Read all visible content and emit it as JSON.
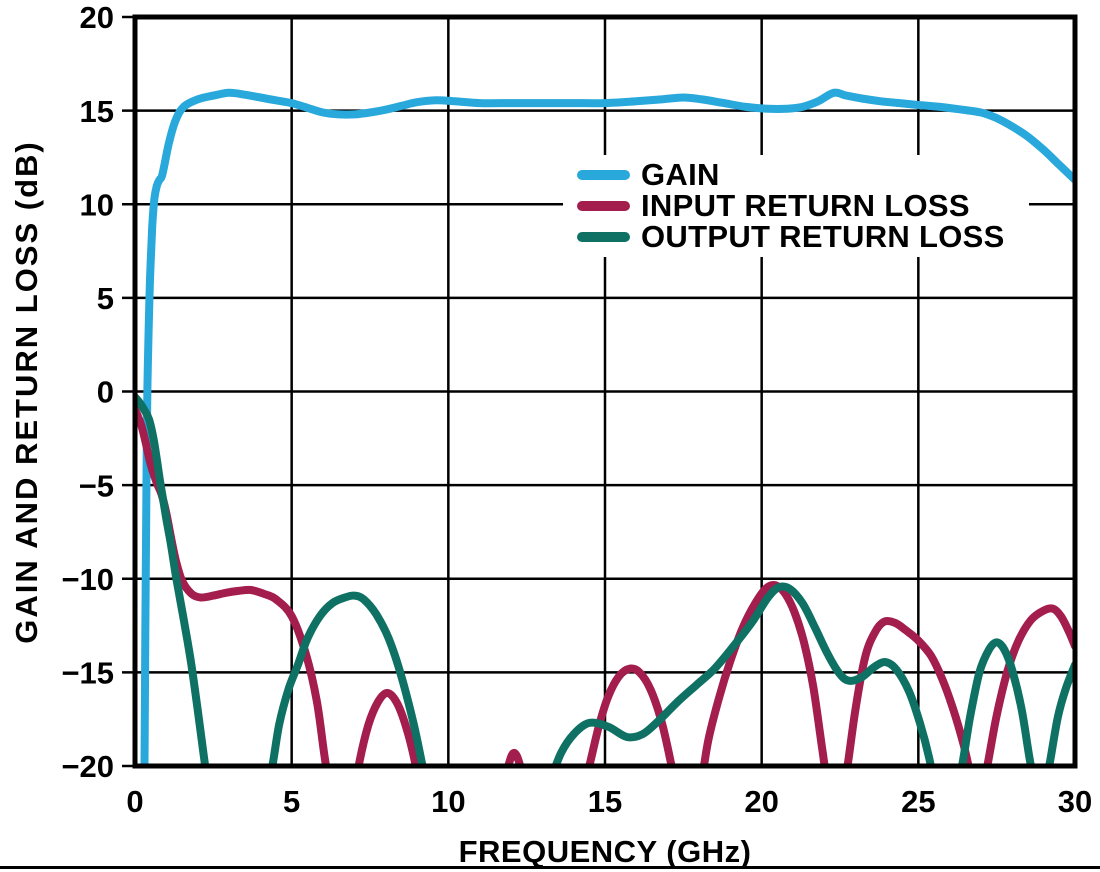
{
  "chart_data": {
    "type": "line",
    "title": "",
    "xlabel": "FREQUENCY (GHz)",
    "ylabel": "GAIN AND RETURN LOSS (dB)",
    "xlim": [
      0,
      30
    ],
    "ylim": [
      -20,
      20
    ],
    "xticks": [
      0,
      5,
      10,
      15,
      20,
      25,
      30
    ],
    "xtick_labels": [
      "0",
      "5",
      "10",
      "15",
      "20",
      "25",
      "30"
    ],
    "yticks": [
      20,
      15,
      10,
      5,
      0,
      -5,
      -10,
      -15,
      -20
    ],
    "ytick_labels": [
      "20",
      "15",
      "10",
      "5",
      "0",
      "−5",
      "−10",
      "−15",
      "−20"
    ],
    "grid": true,
    "grid_color": "#000000",
    "axis_color": "#000000",
    "legend_position": "upper-middle",
    "series": [
      {
        "name": "GAIN",
        "color": "#29A8DC",
        "points": [
          [
            0.3,
            -21
          ],
          [
            0.33,
            -13
          ],
          [
            0.36,
            -6
          ],
          [
            0.38,
            -2
          ],
          [
            0.4,
            0.5
          ],
          [
            0.43,
            3
          ],
          [
            0.48,
            6
          ],
          [
            0.55,
            8.8
          ],
          [
            0.62,
            10.3
          ],
          [
            0.7,
            11
          ],
          [
            0.78,
            11.3
          ],
          [
            0.86,
            11.5
          ],
          [
            0.95,
            12.2
          ],
          [
            1.1,
            13.4
          ],
          [
            1.3,
            14.5
          ],
          [
            1.55,
            15.2
          ],
          [
            2,
            15.6
          ],
          [
            2.5,
            15.8
          ],
          [
            3,
            15.95
          ],
          [
            3.5,
            15.85
          ],
          [
            4,
            15.7
          ],
          [
            4.5,
            15.55
          ],
          [
            5,
            15.4
          ],
          [
            5.5,
            15.15
          ],
          [
            6,
            14.9
          ],
          [
            6.5,
            14.8
          ],
          [
            7,
            14.8
          ],
          [
            7.5,
            14.9
          ],
          [
            8,
            15.05
          ],
          [
            8.5,
            15.25
          ],
          [
            9,
            15.45
          ],
          [
            9.6,
            15.55
          ],
          [
            10.2,
            15.5
          ],
          [
            11,
            15.4
          ],
          [
            12,
            15.4
          ],
          [
            13,
            15.4
          ],
          [
            14,
            15.4
          ],
          [
            15,
            15.4
          ],
          [
            16,
            15.5
          ],
          [
            16.8,
            15.6
          ],
          [
            17.5,
            15.7
          ],
          [
            18.1,
            15.6
          ],
          [
            18.8,
            15.4
          ],
          [
            19.5,
            15.2
          ],
          [
            20.2,
            15.1
          ],
          [
            20.8,
            15.1
          ],
          [
            21.3,
            15.2
          ],
          [
            21.8,
            15.5
          ],
          [
            22.3,
            15.95
          ],
          [
            22.7,
            15.8
          ],
          [
            23.2,
            15.65
          ],
          [
            23.8,
            15.5
          ],
          [
            24.4,
            15.4
          ],
          [
            25,
            15.3
          ],
          [
            25.7,
            15.2
          ],
          [
            26.4,
            15.05
          ],
          [
            27,
            14.9
          ],
          [
            27.5,
            14.6
          ],
          [
            28,
            14.15
          ],
          [
            28.5,
            13.6
          ],
          [
            29,
            12.9
          ],
          [
            29.5,
            12.1
          ],
          [
            30,
            11.3
          ]
        ]
      },
      {
        "name": "INPUT RETURN LOSS",
        "color": "#A31D4D",
        "points": [
          [
            0,
            -0.95
          ],
          [
            0.2,
            -1.8
          ],
          [
            0.35,
            -2.8
          ],
          [
            0.5,
            -3.9
          ],
          [
            0.7,
            -4.9
          ],
          [
            0.85,
            -5.5
          ],
          [
            1,
            -6.5
          ],
          [
            1.15,
            -7.8
          ],
          [
            1.3,
            -9
          ],
          [
            1.5,
            -10.1
          ],
          [
            1.8,
            -10.8
          ],
          [
            2.1,
            -11
          ],
          [
            2.5,
            -10.9
          ],
          [
            2.9,
            -10.75
          ],
          [
            3.3,
            -10.65
          ],
          [
            3.7,
            -10.6
          ],
          [
            4.1,
            -10.8
          ],
          [
            4.5,
            -11.1
          ],
          [
            5,
            -12
          ],
          [
            5.45,
            -14
          ],
          [
            5.8,
            -16.5
          ],
          [
            6.05,
            -19.5
          ],
          [
            6.3,
            -22
          ],
          [
            6.6,
            -23.5
          ],
          [
            6.95,
            -22
          ],
          [
            7.15,
            -19.9
          ],
          [
            7.45,
            -17.8
          ],
          [
            7.75,
            -16.6
          ],
          [
            8.05,
            -16.1
          ],
          [
            8.35,
            -16.6
          ],
          [
            8.65,
            -17.9
          ],
          [
            8.95,
            -19.9
          ],
          [
            9.15,
            -22
          ],
          [
            9.6,
            -24.5
          ],
          [
            10.5,
            -25
          ],
          [
            11.2,
            -23.5
          ],
          [
            11.8,
            -20.6
          ],
          [
            12.1,
            -19.3
          ],
          [
            12.4,
            -20.6
          ],
          [
            12.8,
            -23
          ],
          [
            13.5,
            -24
          ],
          [
            14.2,
            -22
          ],
          [
            14.5,
            -20
          ],
          [
            14.8,
            -17.9
          ],
          [
            15.1,
            -16.3
          ],
          [
            15.45,
            -15.2
          ],
          [
            15.8,
            -14.8
          ],
          [
            16.1,
            -15
          ],
          [
            16.45,
            -15.9
          ],
          [
            16.8,
            -17.6
          ],
          [
            17.1,
            -19.8
          ],
          [
            17.35,
            -22
          ],
          [
            17.7,
            -23
          ],
          [
            18.05,
            -21
          ],
          [
            18.3,
            -18.6
          ],
          [
            18.65,
            -16.3
          ],
          [
            19,
            -14.4
          ],
          [
            19.4,
            -12.6
          ],
          [
            19.8,
            -11.3
          ],
          [
            20.15,
            -10.5
          ],
          [
            20.45,
            -10.35
          ],
          [
            20.75,
            -10.8
          ],
          [
            21.05,
            -11.8
          ],
          [
            21.35,
            -13.4
          ],
          [
            21.65,
            -15.8
          ],
          [
            21.95,
            -19.3
          ],
          [
            22.2,
            -22
          ],
          [
            22.5,
            -22.5
          ],
          [
            22.75,
            -19.9
          ],
          [
            23,
            -16.9
          ],
          [
            23.3,
            -14.2
          ],
          [
            23.6,
            -12.9
          ],
          [
            23.9,
            -12.3
          ],
          [
            24.25,
            -12.35
          ],
          [
            24.6,
            -12.75
          ],
          [
            25,
            -13.3
          ],
          [
            25.4,
            -14.1
          ],
          [
            25.75,
            -15.3
          ],
          [
            26.1,
            -16.9
          ],
          [
            26.45,
            -18.9
          ],
          [
            26.75,
            -21
          ],
          [
            27,
            -21.5
          ],
          [
            27.2,
            -20
          ],
          [
            27.5,
            -17.3
          ],
          [
            27.85,
            -14.9
          ],
          [
            28.2,
            -13.3
          ],
          [
            28.6,
            -12.2
          ],
          [
            29,
            -11.7
          ],
          [
            29.3,
            -11.6
          ],
          [
            29.55,
            -12
          ],
          [
            29.8,
            -12.8
          ],
          [
            30,
            -13.6
          ]
        ]
      },
      {
        "name": "OUTPUT RETURN LOSS",
        "color": "#0E7163",
        "points": [
          [
            0,
            -0.3
          ],
          [
            0.15,
            -0.6
          ],
          [
            0.3,
            -1
          ],
          [
            0.45,
            -1.5
          ],
          [
            0.6,
            -2.6
          ],
          [
            0.72,
            -3.9
          ],
          [
            0.8,
            -4.8
          ],
          [
            0.88,
            -5.6
          ],
          [
            1,
            -6.8
          ],
          [
            1.15,
            -8.2
          ],
          [
            1.3,
            -9.8
          ],
          [
            1.45,
            -11.2
          ],
          [
            1.6,
            -12.6
          ],
          [
            1.8,
            -14.6
          ],
          [
            2,
            -17
          ],
          [
            2.2,
            -19.5
          ],
          [
            2.4,
            -21.8
          ],
          [
            2.8,
            -24
          ],
          [
            3.4,
            -25
          ],
          [
            4,
            -22.6
          ],
          [
            4.35,
            -20.3
          ],
          [
            4.6,
            -17.8
          ],
          [
            4.9,
            -15.9
          ],
          [
            5.2,
            -14.6
          ],
          [
            5.5,
            -13.2
          ],
          [
            5.9,
            -12
          ],
          [
            6.3,
            -11.3
          ],
          [
            6.7,
            -11
          ],
          [
            7,
            -10.9
          ],
          [
            7.3,
            -11.1
          ],
          [
            7.7,
            -11.9
          ],
          [
            8.1,
            -13.2
          ],
          [
            8.5,
            -15.2
          ],
          [
            8.9,
            -17.8
          ],
          [
            9.2,
            -20.2
          ],
          [
            9.6,
            -23.5
          ],
          [
            10.5,
            -25.5
          ],
          [
            11.5,
            -25.5
          ],
          [
            12.5,
            -24
          ],
          [
            13.2,
            -21
          ],
          [
            13.6,
            -19.3
          ],
          [
            14,
            -18.3
          ],
          [
            14.5,
            -17.7
          ],
          [
            15.1,
            -17.9
          ],
          [
            15.7,
            -18.45
          ],
          [
            16.2,
            -18.3
          ],
          [
            16.7,
            -17.6
          ],
          [
            17.3,
            -16.6
          ],
          [
            17.9,
            -15.7
          ],
          [
            18.5,
            -14.8
          ],
          [
            19.1,
            -13.6
          ],
          [
            19.7,
            -12.3
          ],
          [
            20.2,
            -11
          ],
          [
            20.55,
            -10.45
          ],
          [
            20.9,
            -10.55
          ],
          [
            21.3,
            -11.3
          ],
          [
            21.7,
            -12.6
          ],
          [
            22.1,
            -14
          ],
          [
            22.5,
            -15.1
          ],
          [
            22.8,
            -15.45
          ],
          [
            23.2,
            -15.25
          ],
          [
            23.6,
            -14.7
          ],
          [
            23.95,
            -14.45
          ],
          [
            24.3,
            -14.85
          ],
          [
            24.7,
            -16
          ],
          [
            25.05,
            -17.7
          ],
          [
            25.35,
            -19.6
          ],
          [
            25.6,
            -21.8
          ],
          [
            26,
            -22.5
          ],
          [
            26.35,
            -20.4
          ],
          [
            26.65,
            -17.4
          ],
          [
            26.95,
            -15
          ],
          [
            27.25,
            -13.8
          ],
          [
            27.5,
            -13.4
          ],
          [
            27.75,
            -13.8
          ],
          [
            28,
            -14.9
          ],
          [
            28.3,
            -17
          ],
          [
            28.55,
            -19.6
          ],
          [
            28.75,
            -21.3
          ],
          [
            29,
            -21.6
          ],
          [
            29.2,
            -19.8
          ],
          [
            29.45,
            -17.4
          ],
          [
            29.7,
            -15.9
          ],
          [
            30,
            -14.6
          ]
        ]
      }
    ]
  }
}
